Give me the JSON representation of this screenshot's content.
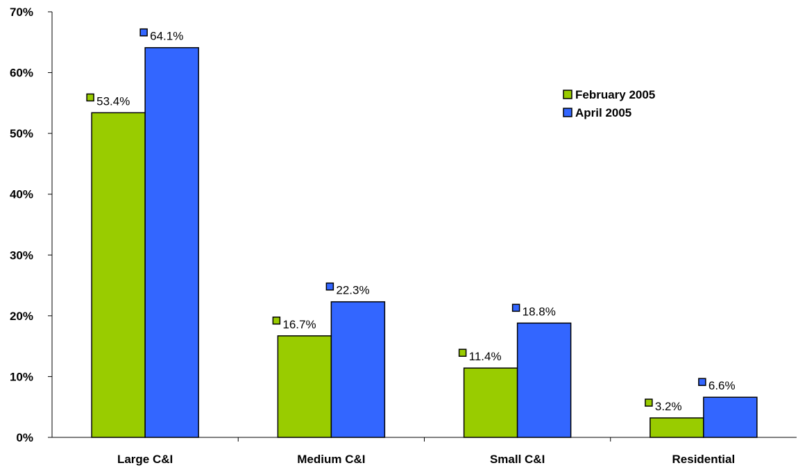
{
  "chart_data": {
    "type": "bar",
    "categories": [
      "Large C&I",
      "Medium C&I",
      "Small C&I",
      "Residential"
    ],
    "series": [
      {
        "name": "February 2005",
        "values": [
          53.4,
          16.7,
          11.4,
          3.2
        ],
        "labels": [
          "53.4%",
          "16.7%",
          "11.4%",
          "3.2%"
        ],
        "color": "#99CC00"
      },
      {
        "name": "April 2005",
        "values": [
          64.1,
          22.3,
          18.8,
          6.6
        ],
        "labels": [
          "64.1%",
          "22.3%",
          "18.8%",
          "6.6%"
        ],
        "color": "#3366FF"
      }
    ],
    "yticks": [
      "0%",
      "10%",
      "20%",
      "30%",
      "40%",
      "50%",
      "60%",
      "70%"
    ],
    "ylim": [
      0,
      70
    ],
    "title": "",
    "xlabel": "",
    "ylabel": "",
    "grid": false,
    "legend_position": "top-right"
  }
}
